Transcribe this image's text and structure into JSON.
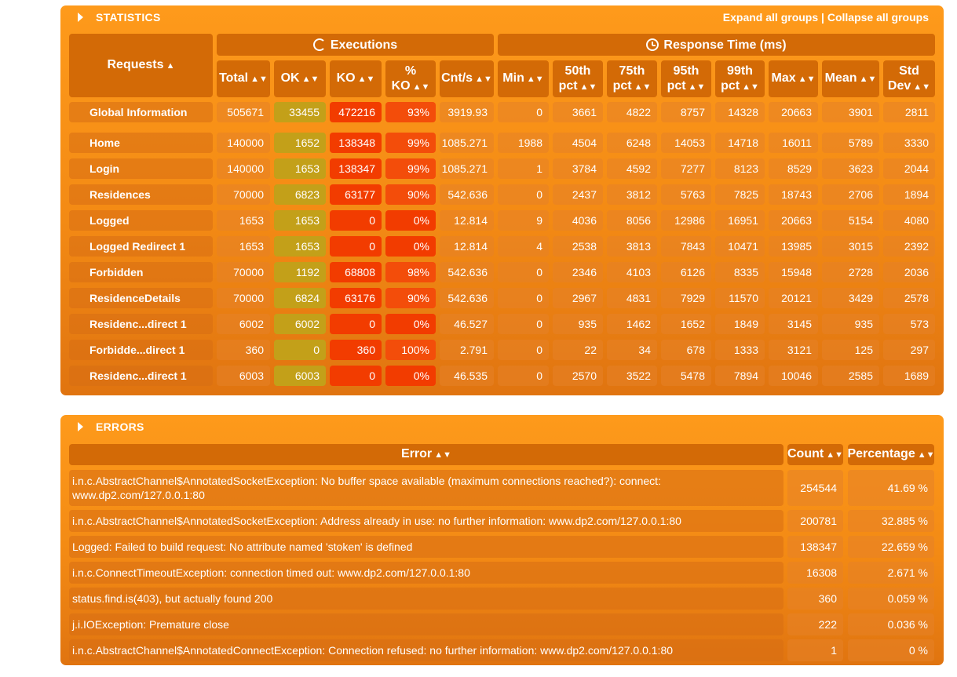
{
  "statistics": {
    "title": "STATISTICS",
    "expand_all": "Expand all groups",
    "separator": " | ",
    "collapse_all": "Collapse all groups",
    "group_executions": "Executions",
    "group_response_time": "Response Time (ms)",
    "columns": {
      "requests": "Requests",
      "total": "Total",
      "ok": "OK",
      "ko": "KO",
      "pct_ko_1": "%",
      "pct_ko_2": "KO",
      "cnt_s": "Cnt/s",
      "min": "Min",
      "p50_1": "50th",
      "p50_2": "pct",
      "p75_1": "75th",
      "p75_2": "pct",
      "p95_1": "95th",
      "p95_2": "pct",
      "p99_1": "99th",
      "p99_2": "pct",
      "max": "Max",
      "mean": "Mean",
      "std_1": "Std",
      "std_2": "Dev"
    },
    "global": [
      "Global Information",
      "505671",
      "33455",
      "472216",
      "93%",
      "3919.93",
      "0",
      "3661",
      "4822",
      "8757",
      "14328",
      "20663",
      "3901",
      "2811"
    ],
    "rows": [
      [
        "Home",
        "140000",
        "1652",
        "138348",
        "99%",
        "1085.271",
        "1988",
        "4504",
        "6248",
        "14053",
        "14718",
        "16011",
        "5789",
        "3330"
      ],
      [
        "Login",
        "140000",
        "1653",
        "138347",
        "99%",
        "1085.271",
        "1",
        "3784",
        "4592",
        "7277",
        "8123",
        "8529",
        "3623",
        "2044"
      ],
      [
        "Residences",
        "70000",
        "6823",
        "63177",
        "90%",
        "542.636",
        "0",
        "2437",
        "3812",
        "5763",
        "7825",
        "18743",
        "2706",
        "1894"
      ],
      [
        "Logged",
        "1653",
        "1653",
        "0",
        "0%",
        "12.814",
        "9",
        "4036",
        "8056",
        "12986",
        "16951",
        "20663",
        "5154",
        "4080"
      ],
      [
        "Logged Redirect 1",
        "1653",
        "1653",
        "0",
        "0%",
        "12.814",
        "4",
        "2538",
        "3813",
        "7843",
        "10471",
        "13985",
        "3015",
        "2392"
      ],
      [
        "Forbidden",
        "70000",
        "1192",
        "68808",
        "98%",
        "542.636",
        "0",
        "2346",
        "4103",
        "6126",
        "8335",
        "15948",
        "2728",
        "2036"
      ],
      [
        "ResidenceDetails",
        "70000",
        "6824",
        "63176",
        "90%",
        "542.636",
        "0",
        "2967",
        "4831",
        "7929",
        "11570",
        "20121",
        "3429",
        "2578"
      ],
      [
        "Residenc...direct 1",
        "6002",
        "6002",
        "0",
        "0%",
        "46.527",
        "0",
        "935",
        "1462",
        "1652",
        "1849",
        "3145",
        "935",
        "573"
      ],
      [
        "Forbidde...direct 1",
        "360",
        "0",
        "360",
        "100%",
        "2.791",
        "0",
        "22",
        "34",
        "678",
        "1333",
        "3121",
        "125",
        "297"
      ],
      [
        "Residenc...direct 1",
        "6003",
        "6003",
        "0",
        "0%",
        "46.535",
        "0",
        "2570",
        "3522",
        "5478",
        "7894",
        "10046",
        "2585",
        "1689"
      ]
    ]
  },
  "errors": {
    "title": "ERRORS",
    "columns": {
      "error": "Error",
      "count": "Count",
      "percentage": "Percentage"
    },
    "rows": [
      [
        "i.n.c.AbstractChannel$AnnotatedSocketException: No buffer space available (maximum connections reached?): connect: www.dp2.com/127.0.0.1:80",
        "254544",
        "41.69 %"
      ],
      [
        "i.n.c.AbstractChannel$AnnotatedSocketException: Address already in use: no further information: www.dp2.com/127.0.0.1:80",
        "200781",
        "32.885 %"
      ],
      [
        "Logged: Failed to build request: No attribute named 'stoken' is defined",
        "138347",
        "22.659 %"
      ],
      [
        "i.n.c.ConnectTimeoutException: connection timed out: www.dp2.com/127.0.0.1:80",
        "16308",
        "2.671 %"
      ],
      [
        "status.find.is(403), but actually found 200",
        "360",
        "0.059 %"
      ],
      [
        "j.i.IOException: Premature close",
        "222",
        "0.036 %"
      ],
      [
        "i.n.c.AbstractChannel$AnnotatedConnectException: Connection refused: no further information: www.dp2.com/127.0.0.1:80",
        "1",
        "0 %"
      ]
    ]
  },
  "colors": {
    "panel": "#f79219",
    "header": "#d36a06",
    "ok": "#c3a019",
    "ko": "#f23c00"
  },
  "icons": {
    "sort": "sort-arrows-icon",
    "executions": "refresh-icon",
    "response_time": "clock-icon"
  }
}
